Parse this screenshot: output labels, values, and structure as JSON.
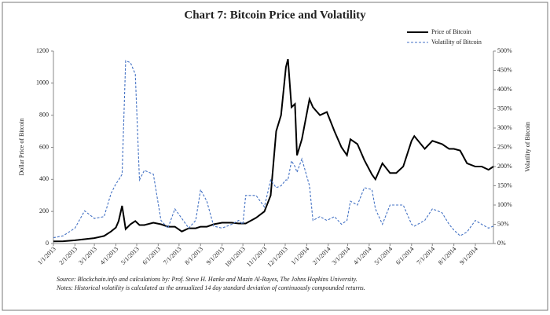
{
  "chart_data": {
    "type": "line",
    "title": "Chart 7: Bitcoin Price and Volatility",
    "ylabel": "Dollar Price of Bitcoin",
    "y2label": "Volatility of Bitcoin",
    "source": "Source: Blockchain.info and calculations by: Prof. Steve H. Hanke and Mazin Al-Rayes, The Johns Hopkins University.",
    "note": "Notes:  Historical volatility is calculated as the annualized 14 day standard deviation of continuously compounded returns.",
    "x": [
      "1/1/2013",
      "1/15/2013",
      "2/1/2013",
      "2/15/2013",
      "3/1/2013",
      "3/15/2013",
      "3/25/2013",
      "4/1/2013",
      "4/5/2013",
      "4/10/2013",
      "4/15/2013",
      "4/22/2013",
      "4/29/2013",
      "5/5/2013",
      "5/12/2013",
      "5/25/2013",
      "6/5/2013",
      "6/15/2013",
      "6/25/2013",
      "7/5/2013",
      "7/15/2013",
      "7/25/2013",
      "8/1/2013",
      "8/10/2013",
      "8/20/2013",
      "9/1/2013",
      "9/15/2013",
      "9/25/2013",
      "10/1/2013",
      "10/5/2013",
      "10/20/2013",
      "11/1/2013",
      "11/10/2013",
      "11/18/2013",
      "11/25/2013",
      "12/2/2013",
      "12/5/2013",
      "12/10/2013",
      "12/15/2013",
      "12/18/2013",
      "12/25/2013",
      "1/5/2014",
      "1/10/2014",
      "1/20/2014",
      "1/30/2014",
      "2/10/2014",
      "2/20/2014",
      "2/28/2014",
      "3/5/2014",
      "3/15/2014",
      "3/25/2014",
      "4/5/2014",
      "4/10/2014",
      "4/20/2014",
      "5/1/2014",
      "5/10/2014",
      "5/20/2014",
      "6/1/2014",
      "6/5/2014",
      "6/20/2014",
      "7/1/2014",
      "7/15/2014",
      "7/25/2014",
      "8/1/2014",
      "8/10/2014",
      "8/20/2014",
      "9/1/2014",
      "9/10/2014",
      "9/20/2014",
      "9/27/2014"
    ],
    "series": [
      {
        "name": "Price of Bitcoin",
        "color": "#000000",
        "axis": "y",
        "values": [
          13,
          14,
          20,
          27,
          34,
          47,
          75,
          100,
          140,
          235,
          90,
          120,
          140,
          115,
          115,
          130,
          120,
          105,
          105,
          75,
          95,
          95,
          105,
          105,
          120,
          130,
          130,
          125,
          125,
          125,
          160,
          200,
          300,
          700,
          800,
          1100,
          1150,
          850,
          870,
          550,
          650,
          900,
          850,
          800,
          820,
          700,
          600,
          550,
          650,
          620,
          520,
          430,
          400,
          500,
          440,
          440,
          480,
          640,
          670,
          590,
          640,
          620,
          590,
          590,
          580,
          500,
          480,
          480,
          460,
          480
        ]
      },
      {
        "name": "Volatility of Bitcoin",
        "color": "#4472c4",
        "axis": "y2",
        "values": [
          15,
          20,
          40,
          85,
          65,
          70,
          130,
          155,
          165,
          180,
          475,
          470,
          440,
          165,
          190,
          180,
          60,
          40,
          90,
          65,
          40,
          60,
          140,
          110,
          45,
          40,
          50,
          60,
          50,
          125,
          125,
          95,
          165,
          145,
          150,
          165,
          165,
          215,
          200,
          185,
          220,
          150,
          60,
          70,
          60,
          70,
          50,
          60,
          110,
          100,
          145,
          140,
          90,
          50,
          100,
          100,
          100,
          50,
          45,
          60,
          90,
          80,
          50,
          35,
          20,
          30,
          60,
          50,
          40,
          45
        ]
      }
    ],
    "xlim": [
      "1/1/2013",
      "9/27/2014"
    ],
    "xticks": [
      "1/1/2013",
      "2/1/2013",
      "3/1/2013",
      "4/1/2013",
      "5/1/2013",
      "6/1/2013",
      "7/1/2013",
      "8/1/2013",
      "9/1/2013",
      "10/1/2013",
      "11/1/2013",
      "12/1/2013",
      "1/1/2014",
      "2/1/2014",
      "3/1/2014",
      "4/1/2014",
      "5/1/2014",
      "6/1/2014",
      "7/1/2014",
      "8/1/2014",
      "9/1/2014"
    ],
    "ylim": [
      0,
      1200
    ],
    "yticks": [
      0,
      200,
      400,
      600,
      800,
      1000,
      1200
    ],
    "y2lim": [
      0,
      500
    ],
    "y2ticks": [
      {
        "value": 0,
        "label": "0%"
      },
      {
        "value": 50,
        "label": "50%"
      },
      {
        "value": 100,
        "label": "100%"
      },
      {
        "value": 150,
        "label": "150%"
      },
      {
        "value": 200,
        "label": "200%"
      },
      {
        "value": 250,
        "label": "250%"
      },
      {
        "value": 300,
        "label": "300%"
      },
      {
        "value": 350,
        "label": "350%"
      },
      {
        "value": 400,
        "label": "400%"
      },
      {
        "value": 450,
        "label": "450%"
      },
      {
        "value": 500,
        "label": "500%"
      }
    ],
    "dashed_series": [
      1
    ]
  }
}
